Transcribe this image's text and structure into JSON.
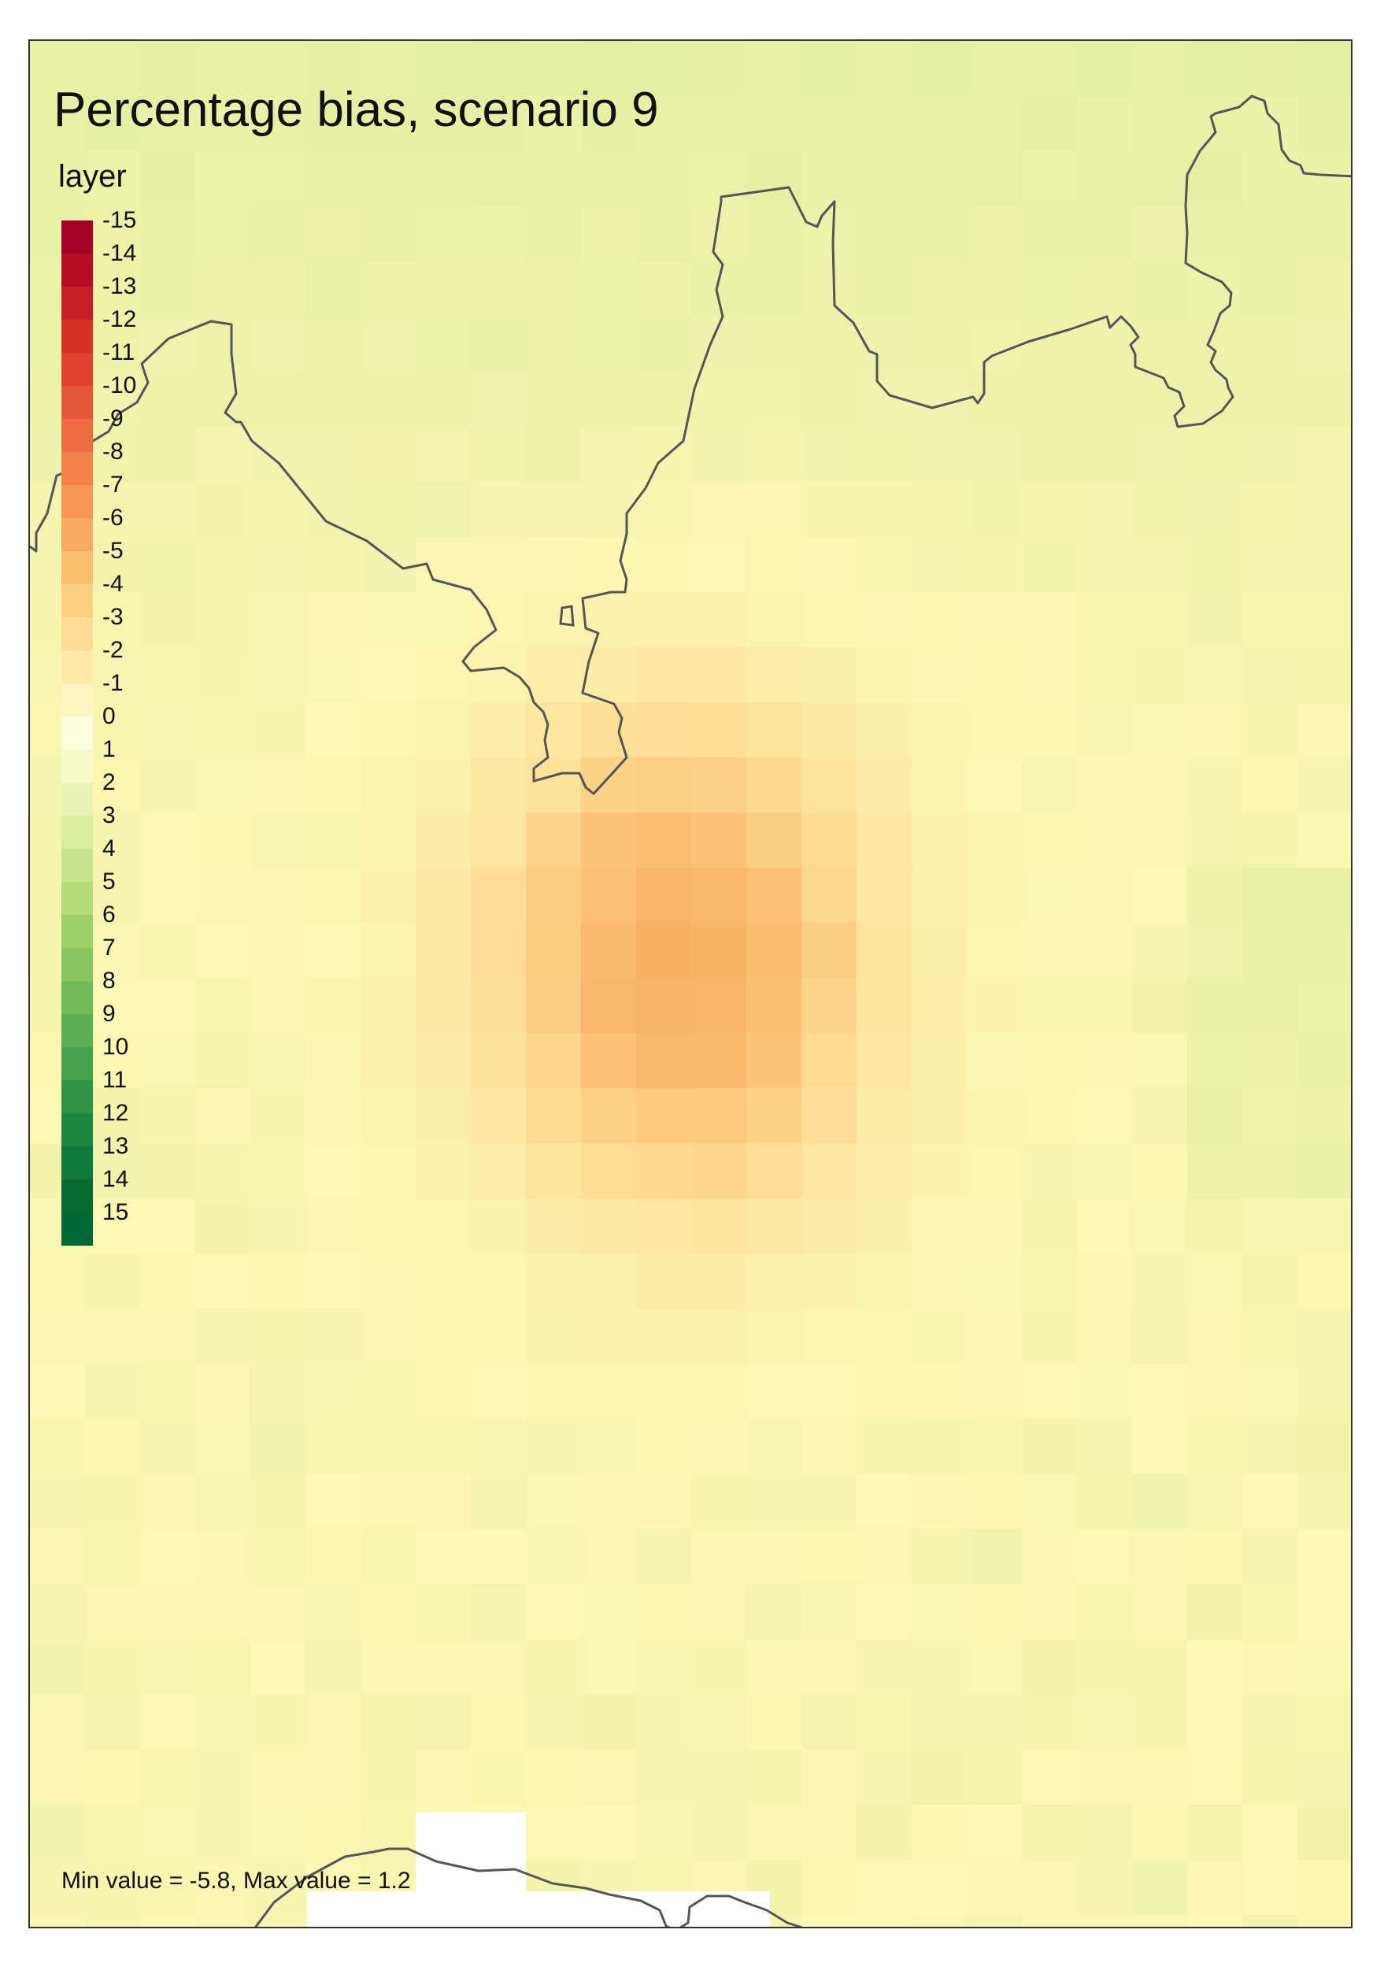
{
  "map": {
    "title": "Percentage bias, scenario 9",
    "legend_title": "layer",
    "legend_labels": [
      "-15",
      "-14",
      "-13",
      "-12",
      "-11",
      "-10",
      "-9",
      "-8",
      "-7",
      "-6",
      "-5",
      "-4",
      "-3",
      "-2",
      "-1",
      "0",
      "1",
      "2",
      "3",
      "4",
      "5",
      "6",
      "7",
      "8",
      "9",
      "10",
      "11",
      "12",
      "13",
      "14",
      "15"
    ],
    "legend_colors": [
      "#a50026",
      "#b80d26",
      "#c91d27",
      "#d73027",
      "#df4230",
      "#e75839",
      "#ef6c41",
      "#f4804c",
      "#f69556",
      "#f9aa62",
      "#fbbf70",
      "#fdd081",
      "#fddd93",
      "#fee9a9",
      "#fff4c0",
      "#fffee0",
      "#f5f9c8",
      "#e8f3b4",
      "#d9ec9f",
      "#c7e48a",
      "#b3db77",
      "#9fd168",
      "#89c65f",
      "#72bb58",
      "#5cae53",
      "#45a14c",
      "#2f9446",
      "#1d8640",
      "#0f7a3a",
      "#086b33",
      "#006837"
    ],
    "min_max_text": "Min value = -5.8, Max value = 1.2",
    "scale": {
      "min": -5.8,
      "max": 1.2,
      "domain": [
        -15,
        15
      ]
    },
    "colors": {
      "frame": "#333333",
      "coastline": "#555555",
      "background": "#fbf7b4"
    }
  }
}
